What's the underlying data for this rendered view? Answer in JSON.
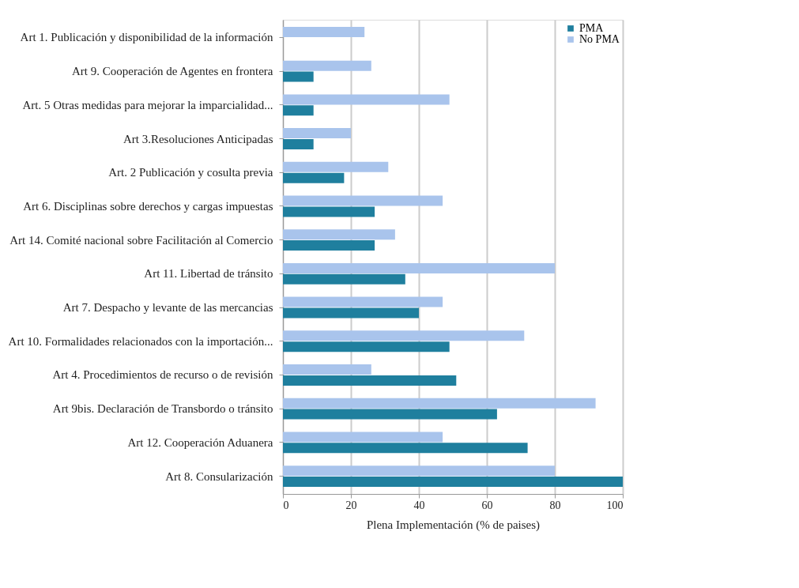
{
  "chart_data": {
    "type": "bar",
    "orientation": "horizontal",
    "xlabel": "Plena Implementación (% de paises)",
    "categories": [
      "Art 1. Publicación y disponibilidad de la información",
      "Art 9. Cooperación de Agentes en frontera",
      "Art. 5 Otras medidas para mejorar la imparcialidad...",
      "Art 3.Resoluciones Anticipadas",
      "Art. 2 Publicación y cosulta previa",
      "Art 6. Disciplinas sobre derechos y cargas impuestas",
      "Art 14. Comité nacional sobre Facilitación al Comercio",
      "Art 11. Libertad de tránsito",
      "Art 7. Despacho y levante de las mercancias",
      "Art 10. Formalidades relacionados con la importación...",
      "Art 4. Procedimientos de recurso o de revisión",
      "Art 9bis. Declaración de Transbordo o tránsito",
      "Art 12. Cooperación Aduanera",
      "Art 8. Consularización"
    ],
    "series": [
      {
        "name": "PMA",
        "color": "#1f7f9e",
        "values": [
          0,
          9,
          9,
          9,
          18,
          27,
          27,
          36,
          40,
          49,
          51,
          63,
          72,
          100
        ]
      },
      {
        "name": "No PMA",
        "color": "#a9c4ec",
        "values": [
          24,
          26,
          49,
          20,
          31,
          47,
          33,
          80,
          47,
          71,
          26,
          92,
          47,
          80
        ]
      }
    ],
    "xlim": [
      0,
      100
    ],
    "xticks": [
      0,
      20,
      40,
      60,
      80,
      100
    ],
    "grid": "x",
    "legend": "top right"
  }
}
